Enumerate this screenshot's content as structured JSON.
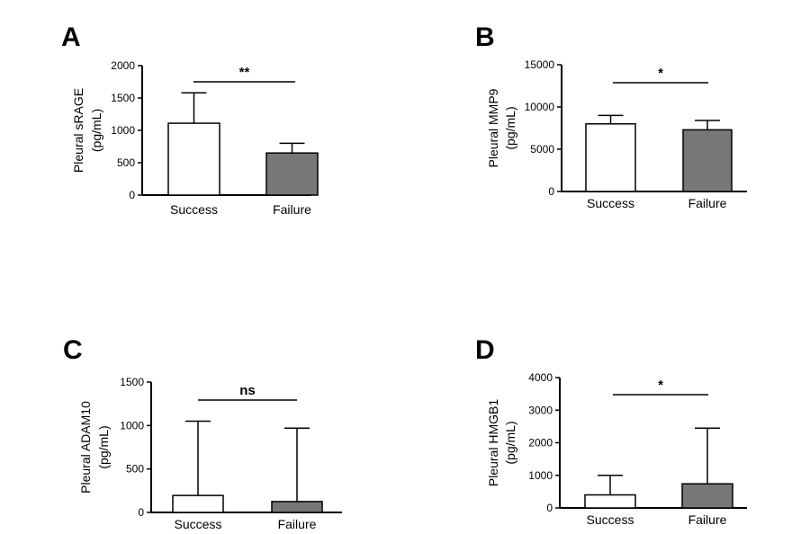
{
  "chart_data": [
    {
      "type": "bar",
      "panel": "A",
      "categories": [
        "Success",
        "Failure"
      ],
      "values": [
        1110,
        650
      ],
      "error_upper": [
        1580,
        800
      ],
      "ylabel_line1": "Pleural sRAGE",
      "ylabel_line2": "(pg/mL)",
      "ylim": [
        0,
        2000
      ],
      "yticks": [
        0,
        500,
        1000,
        1500,
        2000
      ],
      "ytick_labels": [
        "0",
        "500",
        "1000",
        "1500",
        "2000"
      ],
      "significance": "**",
      "bar_colors": [
        "#ffffff",
        "#777777"
      ]
    },
    {
      "type": "bar",
      "panel": "B",
      "categories": [
        "Success",
        "Failure"
      ],
      "values": [
        8000,
        7300
      ],
      "error_upper": [
        9000,
        8400
      ],
      "ylabel_line1": "Pleural MMP9",
      "ylabel_line2": "(pg/mL)",
      "ylim": [
        0,
        15000
      ],
      "yticks": [
        0,
        5000,
        10000,
        15000
      ],
      "ytick_labels": [
        "0",
        "5000",
        "10000",
        "15000"
      ],
      "significance": "*",
      "bar_colors": [
        "#ffffff",
        "#777777"
      ]
    },
    {
      "type": "bar",
      "panel": "C",
      "categories": [
        "Success",
        "Failure"
      ],
      "values": [
        195,
        125
      ],
      "error_upper": [
        1050,
        970
      ],
      "ylabel_line1": "Pleural ADAM10",
      "ylabel_line2": "(pg/mL)",
      "ylim": [
        0,
        1500
      ],
      "yticks": [
        0,
        500,
        1000,
        1500
      ],
      "ytick_labels": [
        "0",
        "500",
        "1000",
        "1500"
      ],
      "significance": "ns",
      "bar_colors": [
        "#ffffff",
        "#777777"
      ]
    },
    {
      "type": "bar",
      "panel": "D",
      "categories": [
        "Success",
        "Failure"
      ],
      "values": [
        400,
        740
      ],
      "error_upper": [
        1000,
        2450
      ],
      "ylabel_line1": "Pleural HMGB1",
      "ylabel_line2": "(pg/mL)",
      "ylim": [
        0,
        4000
      ],
      "yticks": [
        0,
        1000,
        2000,
        3000,
        4000
      ],
      "ytick_labels": [
        "0",
        "1000",
        "2000",
        "3000",
        "4000"
      ],
      "significance": "*",
      "bar_colors": [
        "#ffffff",
        "#777777"
      ]
    }
  ]
}
